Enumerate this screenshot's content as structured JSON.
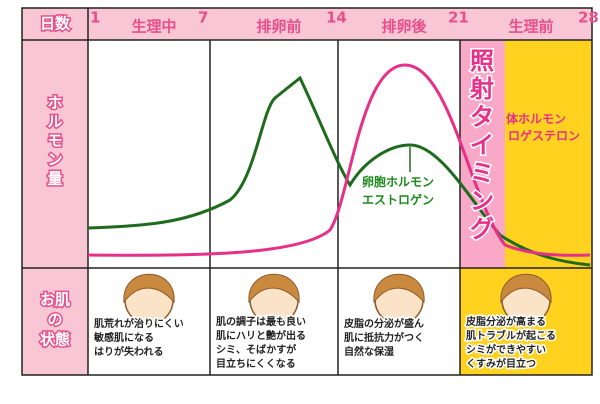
{
  "header": {
    "days_label": "日数",
    "days": [
      "1",
      "7",
      "14",
      "21",
      "28"
    ],
    "phases": [
      "生理中",
      "排卵前",
      "排卵後",
      "生理前"
    ]
  },
  "hormone": {
    "label": [
      "ホ",
      "ル",
      "モ",
      "ン",
      "量"
    ],
    "timing": [
      "照",
      "射",
      "タ",
      "イ",
      "ミ",
      "ン",
      "グ"
    ],
    "estrogen": [
      "卵胞ホルモン",
      "エストロゲン"
    ],
    "progesterone": [
      "体ホルモン",
      "ロゲステロン"
    ]
  },
  "skin": {
    "label": [
      "お肌",
      "の",
      "状態"
    ],
    "phases": [
      [
        "肌荒れが治りにくい",
        "敏感肌になる",
        "はりが失われる"
      ],
      [
        "肌の調子は最も良い",
        "肌にハリと艶が出る",
        "シミ、そばかすが",
        "目立ちにくくなる"
      ],
      [
        "皮脂の分泌が盛ん",
        "肌に抵抗力がつく",
        "自然な保湿"
      ],
      [
        "皮脂分泌が高まる",
        "肌トラブルが起こる",
        "シミができやすい",
        "くすみが目立つ"
      ]
    ]
  }
}
